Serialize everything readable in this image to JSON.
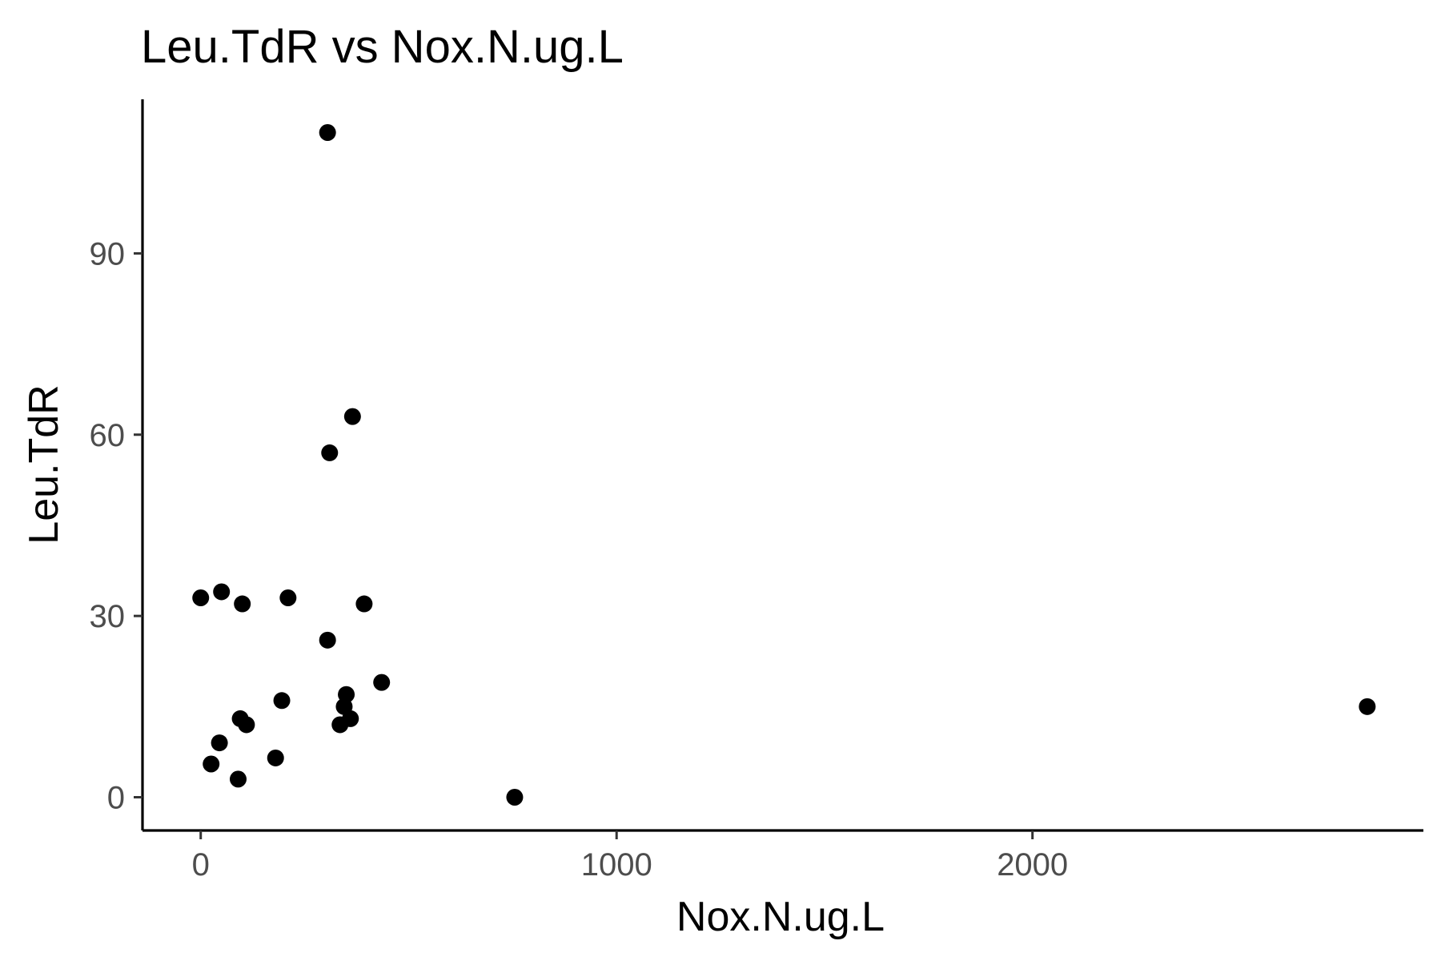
{
  "chart_data": {
    "type": "scatter",
    "title": "Leu.TdR vs Nox.N.ug.L",
    "xlabel": "Nox.N.ug.L",
    "ylabel": "Leu.TdR",
    "xlim": [
      -140,
      2940
    ],
    "ylim": [
      -5.5,
      115.5
    ],
    "x_ticks": [
      0,
      1000,
      2000
    ],
    "x_tick_labels": [
      "0",
      "1000",
      "2000"
    ],
    "y_ticks": [
      0,
      30,
      60,
      90
    ],
    "y_tick_labels": [
      "0",
      "30",
      "60",
      "90"
    ],
    "grid": false,
    "legend": "none",
    "point_color": "#000000",
    "points": [
      {
        "x": 305,
        "y": 110
      },
      {
        "x": 365,
        "y": 63
      },
      {
        "x": 310,
        "y": 57
      },
      {
        "x": 0,
        "y": 33
      },
      {
        "x": 50,
        "y": 34
      },
      {
        "x": 100,
        "y": 32
      },
      {
        "x": 210,
        "y": 33
      },
      {
        "x": 393,
        "y": 32
      },
      {
        "x": 305,
        "y": 26
      },
      {
        "x": 435,
        "y": 19
      },
      {
        "x": 350,
        "y": 17
      },
      {
        "x": 195,
        "y": 16
      },
      {
        "x": 345,
        "y": 15
      },
      {
        "x": 95,
        "y": 13
      },
      {
        "x": 360,
        "y": 13
      },
      {
        "x": 110,
        "y": 12
      },
      {
        "x": 335,
        "y": 12
      },
      {
        "x": 45,
        "y": 9
      },
      {
        "x": 180,
        "y": 6.5
      },
      {
        "x": 25,
        "y": 5.5
      },
      {
        "x": 90,
        "y": 3
      },
      {
        "x": 755,
        "y": 0
      },
      {
        "x": 2805,
        "y": 15
      }
    ]
  }
}
